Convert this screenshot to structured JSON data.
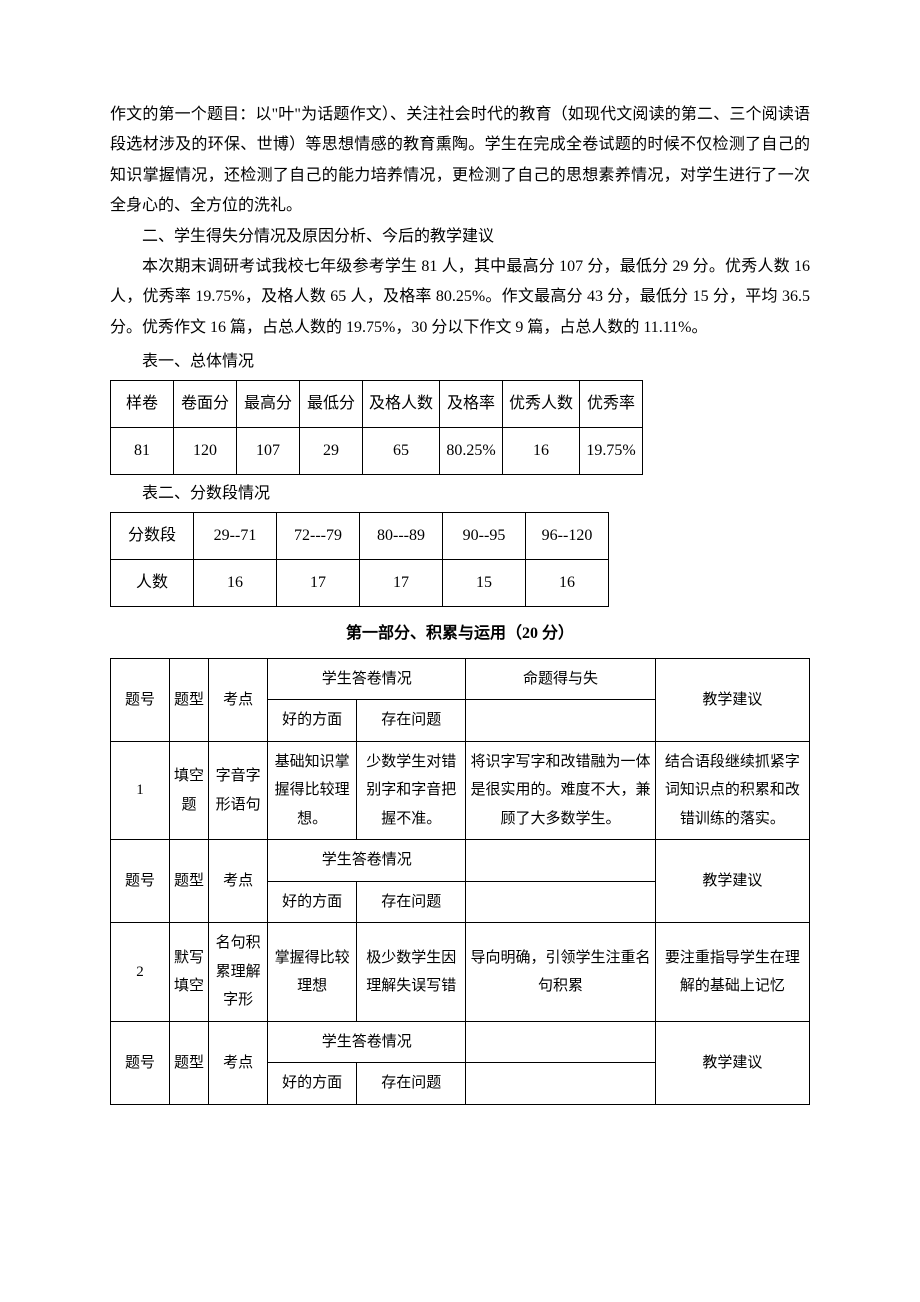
{
  "paragraphs": {
    "p1": "作文的第一个题目：以\"叶\"为话题作文）、关注社会时代的教育（如现代文阅读的第二、三个阅读语段选材涉及的环保、世博）等思想情感的教育熏陶。学生在完成全卷试题的时候不仅检测了自己的知识掌握情况，还检测了自己的能力培养情况，更检测了自己的思想素养情况，对学生进行了一次全身心的、全方位的洗礼。",
    "p2": "二、学生得失分情况及原因分析、今后的教学建议",
    "p3": "本次期末调研考试我校七年级参考学生 81 人，其中最高分 107 分，最低分 29 分。优秀人数 16 人，优秀率 19.75%，及格人数 65 人，及格率 80.25%。作文最高分 43 分，最低分 15 分，平均 36.5 分。优秀作文 16 篇，占总人数的 19.75%，30 分以下作文 9 篇，占总人数的 11.11%。"
  },
  "table1": {
    "caption": "表一、总体情况",
    "headers": [
      "样卷",
      "卷面分",
      "最高分",
      "最低分",
      "及格人数",
      "及格率",
      "优秀人数",
      "优秀率"
    ],
    "row": [
      "81",
      "120",
      "107",
      "29",
      "65",
      "80.25%",
      "16",
      "19.75%"
    ]
  },
  "table2": {
    "caption": "表二、分数段情况",
    "headers": [
      "分数段",
      "29--71",
      "72---79",
      "80---89",
      "90--95",
      "96--120"
    ],
    "row": [
      "人数",
      "16",
      "17",
      "17",
      "15",
      "16"
    ]
  },
  "section_title": "第一部分、积累与运用（20 分）",
  "table3": {
    "hdr": {
      "num": "题号",
      "type": "题型",
      "point": "考点",
      "answer_top": "学生答卷情况",
      "eval": "命题得与失",
      "suggest": "教学建议",
      "good": "好的方面",
      "bad": "存在问题"
    },
    "rows": [
      {
        "num": "1",
        "type": "填空题",
        "point": "字音字形语句",
        "good": "基础知识掌握得比较理想。",
        "bad": "少数学生对错别字和字音把握不准。",
        "eval": "将识字写字和改错融为一体是很实用的。难度不大，兼顾了大多数学生。",
        "suggest": "结合语段继续抓紧字词知识点的积累和改错训练的落实。"
      },
      {
        "num": "2",
        "type": "默写填空",
        "point": "名句积累理解字形",
        "good": "掌握得比较理想",
        "bad": "极少数学生因理解失误写错",
        "eval": "导向明确，引领学生注重名句积累",
        "suggest": "要注重指导学生在理解的基础上记忆"
      }
    ]
  }
}
